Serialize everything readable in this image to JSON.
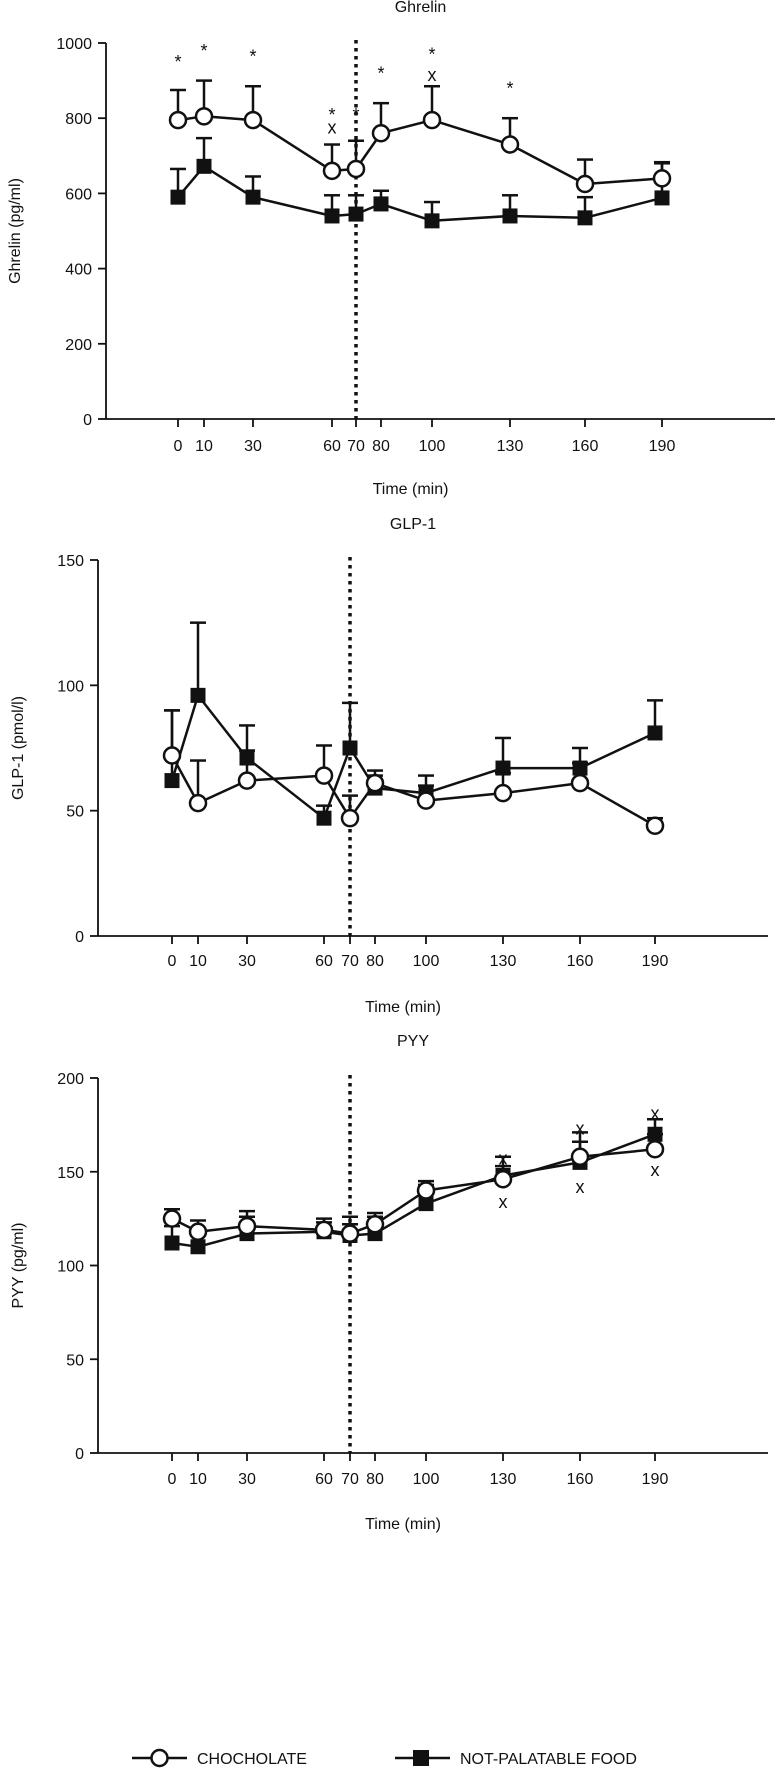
{
  "chart_data": [
    {
      "type": "line",
      "title": "Ghrelin",
      "xlabel": "Time (min)",
      "ylabel": "Ghrelin (pg/ml)",
      "ylim": [
        0,
        1000
      ],
      "y_ticks": [
        0,
        200,
        400,
        600,
        800,
        1000
      ],
      "x": [
        0,
        10,
        30,
        60,
        70,
        80,
        100,
        130,
        160,
        190
      ],
      "x_ticks": [
        0,
        10,
        30,
        60,
        70,
        80,
        100,
        130,
        160,
        190
      ],
      "vertical_line_x": 70,
      "grid": false,
      "series": [
        {
          "name": "CHOCHOLATE",
          "marker": "open-circle",
          "values": [
            795,
            805,
            795,
            660,
            665,
            760,
            795,
            730,
            625,
            640
          ],
          "error": [
            80,
            95,
            90,
            70,
            75,
            80,
            90,
            70,
            65,
            40
          ]
        },
        {
          "name": "NOT-PALATABLE FOOD",
          "marker": "filled-square",
          "values": [
            590,
            672,
            590,
            540,
            545,
            572,
            527,
            540,
            535,
            588
          ],
          "error": [
            75,
            75,
            55,
            55,
            50,
            35,
            50,
            55,
            55,
            95
          ]
        }
      ],
      "annotations": [
        {
          "x": 0,
          "y": 965,
          "text": "*"
        },
        {
          "x": 10,
          "y": 995,
          "text": "*"
        },
        {
          "x": 30,
          "y": 980,
          "text": "*"
        },
        {
          "x": 60,
          "y": 825,
          "text": "*"
        },
        {
          "x": 60,
          "y": 775,
          "text": "x"
        },
        {
          "x": 70,
          "y": 825,
          "text": "*"
        },
        {
          "x": 80,
          "y": 935,
          "text": "*"
        },
        {
          "x": 100,
          "y": 985,
          "text": "*"
        },
        {
          "x": 100,
          "y": 915,
          "text": "x"
        },
        {
          "x": 130,
          "y": 895,
          "text": "*"
        }
      ]
    },
    {
      "type": "line",
      "title": "GLP-1",
      "xlabel": "Time (min)",
      "ylabel": "GLP-1 (pmol/l)",
      "ylim": [
        0,
        150
      ],
      "y_ticks": [
        0,
        50,
        100,
        150
      ],
      "x": [
        0,
        10,
        30,
        60,
        70,
        80,
        100,
        130,
        160,
        190
      ],
      "x_ticks": [
        0,
        10,
        30,
        60,
        70,
        80,
        100,
        130,
        160,
        190
      ],
      "vertical_line_x": 70,
      "grid": false,
      "series": [
        {
          "name": "CHOCHOLATE",
          "marker": "open-circle",
          "values": [
            72,
            53,
            62,
            64,
            47,
            61,
            54,
            57,
            61,
            44
          ],
          "error": [
            18,
            17,
            12,
            12,
            9,
            5,
            6,
            8,
            8,
            3
          ]
        },
        {
          "name": "NOT-PALATABLE FOOD",
          "marker": "filled-square",
          "values": [
            62,
            96,
            71,
            47,
            75,
            59,
            57,
            67,
            67,
            81
          ],
          "error": [
            28,
            29,
            13,
            5,
            18,
            5,
            7,
            12,
            8,
            13
          ]
        }
      ],
      "annotations": []
    },
    {
      "type": "line",
      "title": "PYY",
      "xlabel": "Time (min)",
      "ylabel": "PYY (pg/ml)",
      "ylim": [
        0,
        200
      ],
      "y_ticks": [
        0,
        50,
        100,
        150,
        200
      ],
      "x": [
        0,
        10,
        30,
        60,
        70,
        80,
        100,
        130,
        160,
        190
      ],
      "x_ticks": [
        0,
        10,
        30,
        60,
        70,
        80,
        100,
        130,
        160,
        190
      ],
      "vertical_line_x": 70,
      "grid": false,
      "series": [
        {
          "name": "CHOCHOLATE",
          "marker": "open-circle",
          "values": [
            125,
            118,
            121,
            119,
            117,
            122,
            140,
            146,
            158,
            162
          ],
          "error": [
            5,
            6,
            8,
            6,
            5,
            6,
            5,
            12,
            8,
            8
          ]
        },
        {
          "name": "NOT-PALATABLE FOOD",
          "marker": "filled-square",
          "values": [
            112,
            110,
            117,
            118,
            116,
            117,
            133,
            148,
            155,
            170
          ],
          "error": [
            9,
            8,
            9,
            5,
            10,
            9,
            10,
            5,
            16,
            8
          ]
        }
      ],
      "annotations": [
        {
          "x": 130,
          "y": 157,
          "text": "x"
        },
        {
          "x": 130,
          "y": 134,
          "text": "x"
        },
        {
          "x": 160,
          "y": 173,
          "text": "x"
        },
        {
          "x": 160,
          "y": 142,
          "text": "x"
        },
        {
          "x": 190,
          "y": 181,
          "text": "x"
        },
        {
          "x": 190,
          "y": 151,
          "text": "x"
        }
      ]
    }
  ],
  "legend": {
    "placement": "bottom",
    "items": [
      {
        "label": "CHOCHOLATE",
        "marker": "open-circle"
      },
      {
        "label": "NOT-PALATABLE FOOD",
        "marker": "filled-square"
      }
    ]
  },
  "colors": {
    "line": "#111111",
    "open_marker_fill": "#ffffff",
    "filled_marker": "#111111",
    "background": "#ffffff"
  }
}
